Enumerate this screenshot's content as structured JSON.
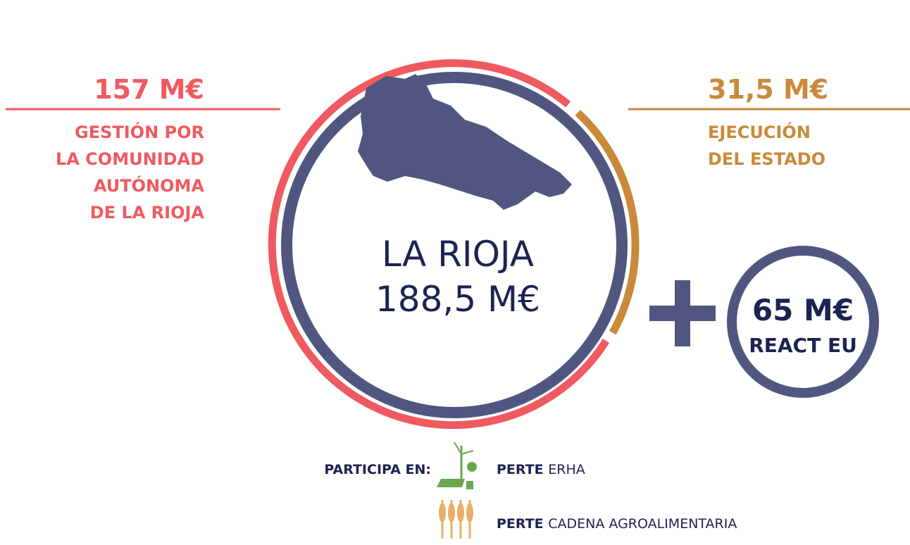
{
  "left": {
    "amount": "157 M€",
    "lines": [
      "GESTIÓN POR",
      "LA COMUNIDAD",
      "AUTÓNOMA",
      "DE LA RIOJA"
    ]
  },
  "right": {
    "amount": "31,5 M€",
    "lines": [
      "EJECUCIÓN",
      "DEL ESTADO"
    ]
  },
  "center": {
    "name": "LA RIOJA",
    "amount": "188,5 M€"
  },
  "react": {
    "amount": "65 M€",
    "label": "REACT EU"
  },
  "participa": {
    "label": "PARTICIPA EN:",
    "items": [
      {
        "prefix": "PERTE",
        "name": "ERHA"
      },
      {
        "prefix": "PERTE",
        "name": "CADENA AGROALIMENTARIA"
      }
    ]
  }
}
